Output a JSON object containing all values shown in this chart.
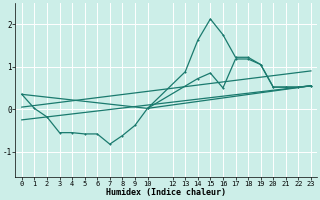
{
  "xlabel": "Humidex (Indice chaleur)",
  "bg_color": "#cceee8",
  "grid_color": "#ffffff",
  "line_color": "#1a7a6e",
  "xlim": [
    -0.5,
    23.5
  ],
  "ylim": [
    -1.6,
    2.5
  ],
  "yticks": [
    -1,
    0,
    1,
    2
  ],
  "xticks": [
    0,
    1,
    2,
    3,
    4,
    5,
    6,
    7,
    8,
    9,
    10,
    12,
    13,
    14,
    15,
    16,
    17,
    18,
    19,
    20,
    21,
    22,
    23
  ],
  "line1_x": [
    0,
    1,
    2,
    3,
    4,
    5,
    6,
    7,
    8,
    9,
    10,
    14,
    15,
    16,
    17,
    18,
    19,
    20,
    21,
    22,
    23
  ],
  "line1_y": [
    0.35,
    0.02,
    -0.18,
    -0.55,
    -0.55,
    -0.58,
    -0.58,
    -0.82,
    -0.62,
    -0.38,
    0.02,
    0.72,
    0.85,
    0.5,
    1.18,
    1.18,
    1.05,
    0.52,
    0.52,
    0.52,
    0.55
  ],
  "line5_x": [
    10,
    13,
    14,
    15,
    16,
    17,
    18,
    19,
    20,
    21,
    22,
    23
  ],
  "line5_y": [
    0.02,
    0.88,
    1.62,
    2.12,
    1.75,
    1.22,
    1.22,
    1.05,
    0.52,
    0.52,
    0.52,
    0.55
  ],
  "line2_x": [
    0,
    10,
    23
  ],
  "line2_y": [
    0.35,
    0.02,
    0.55
  ],
  "line3_x": [
    0,
    23
  ],
  "line3_y": [
    0.05,
    0.9
  ],
  "line4_x": [
    0,
    23
  ],
  "line4_y": [
    -0.25,
    0.55
  ]
}
